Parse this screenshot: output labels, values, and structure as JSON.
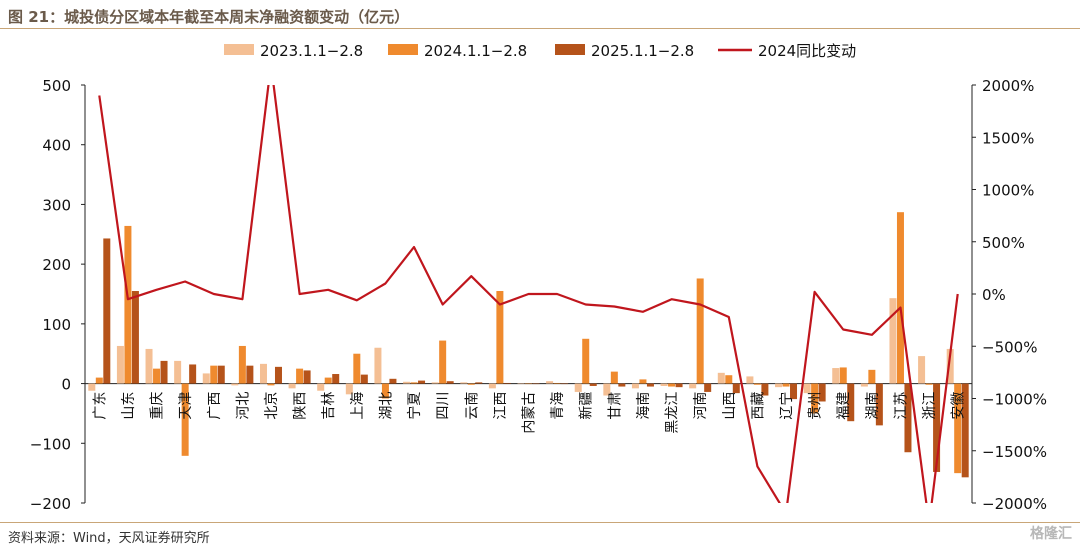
{
  "title": "图 21：城投债分区域本年截至本周末净融资额变动（亿元）",
  "source": "资料来源：Wind，天风证券研究所",
  "watermark": "格隆汇",
  "colors": {
    "s2023": "#f4bf94",
    "s2024": "#ef8a2e",
    "s2025": "#b5531a",
    "yoy": "#c0161d"
  },
  "chart_data": {
    "type": "bar",
    "title": "城投债分区域本年截至本周末净融资额变动（亿元）",
    "categories": [
      "广东",
      "山东",
      "重庆",
      "天津",
      "广西",
      "河北",
      "北京",
      "陕西",
      "吉林",
      "上海",
      "湖北",
      "宁夏",
      "四川",
      "云南",
      "江西",
      "内蒙古",
      "青海",
      "新疆",
      "甘肃",
      "海南",
      "黑龙江",
      "河南",
      "山西",
      "西藏",
      "辽宁",
      "贵州",
      "福建",
      "湖南",
      "江苏",
      "浙江",
      "安徽"
    ],
    "ylim": [
      -200,
      500
    ],
    "yticks": [
      "500",
      "400",
      "300",
      "200",
      "100",
      "0",
      "−100",
      "−200"
    ],
    "y2lim": [
      -2000,
      2000
    ],
    "y2ticks": [
      "2000%",
      "1500%",
      "1000%",
      "500%",
      "0%",
      "−500%",
      "−1000%",
      "−1500%",
      "−2000%"
    ],
    "series": [
      {
        "name": "2023.1.1−2.8",
        "type": "bar",
        "values": [
          -12,
          63,
          58,
          38,
          17,
          -3,
          33,
          -8,
          -12,
          -18,
          60,
          3,
          2,
          2,
          -8,
          0,
          4,
          -14,
          -20,
          -8,
          -4,
          -8,
          18,
          12,
          -6,
          -16,
          26,
          -5,
          143,
          46,
          58
        ]
      },
      {
        "name": "2024.1.1−2.8",
        "type": "bar",
        "values": [
          10,
          264,
          25,
          -121,
          30,
          63,
          -3,
          25,
          10,
          50,
          -25,
          2,
          72,
          -2,
          155,
          0,
          1,
          75,
          20,
          7,
          -5,
          176,
          14,
          -2,
          -5,
          -50,
          27,
          23,
          287,
          -2,
          -150
        ]
      },
      {
        "name": "2025.1.1−2.8",
        "type": "bar",
        "values": [
          243,
          155,
          38,
          32,
          30,
          30,
          28,
          22,
          16,
          15,
          8,
          5,
          4,
          2,
          1,
          0,
          0,
          -4,
          -5,
          -5,
          -6,
          -14,
          -16,
          -20,
          -26,
          -30,
          -63,
          -70,
          -115,
          -148,
          -157
        ]
      },
      {
        "name": "2024同比变动",
        "type": "line",
        "axis": "right",
        "values": [
          1900,
          -50,
          40,
          120,
          0,
          -50,
          2200,
          0,
          40,
          -60,
          100,
          450,
          -100,
          170,
          -100,
          0,
          0,
          -100,
          -120,
          -170,
          -50,
          -100,
          -220,
          -1650,
          -2100,
          20,
          -340,
          -390,
          -130,
          -2200,
          0
        ]
      }
    ]
  }
}
